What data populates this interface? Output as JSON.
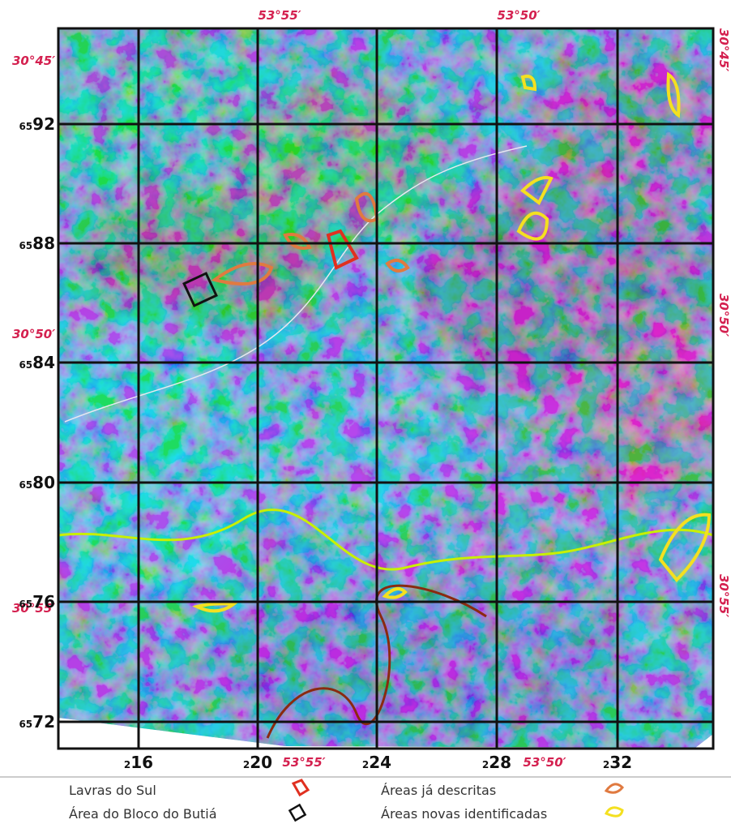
{
  "map": {
    "top_labels": [
      "53°55′",
      "53°50′"
    ],
    "left_grid_labels": [
      {
        "minor": "65",
        "major": "92"
      },
      {
        "minor": "65",
        "major": "88"
      },
      {
        "minor": "65",
        "major": "84"
      },
      {
        "minor": "65",
        "major": "80"
      },
      {
        "minor": "65",
        "major": "76"
      },
      {
        "minor": "65",
        "major": "72"
      }
    ],
    "bottom_grid_labels": [
      {
        "minor": "2",
        "major": "16"
      },
      {
        "minor": "2",
        "major": "20"
      },
      {
        "minor": "2",
        "major": "24"
      },
      {
        "minor": "2",
        "major": "28"
      },
      {
        "minor": "2",
        "major": "32"
      }
    ],
    "bottom_coord_labels": [
      "53°55′",
      "53°50′"
    ],
    "left_coord_labels": [
      "30°45′",
      "30°50′",
      "30°55′"
    ],
    "right_coord_labels": [
      "30°45′",
      "30°50′",
      "30°55′"
    ]
  },
  "legend": [
    "Lavras do Sul",
    "Área do Bloco do Butiá",
    "Áreas já descritas",
    "Áreas novas identificadas"
  ]
}
